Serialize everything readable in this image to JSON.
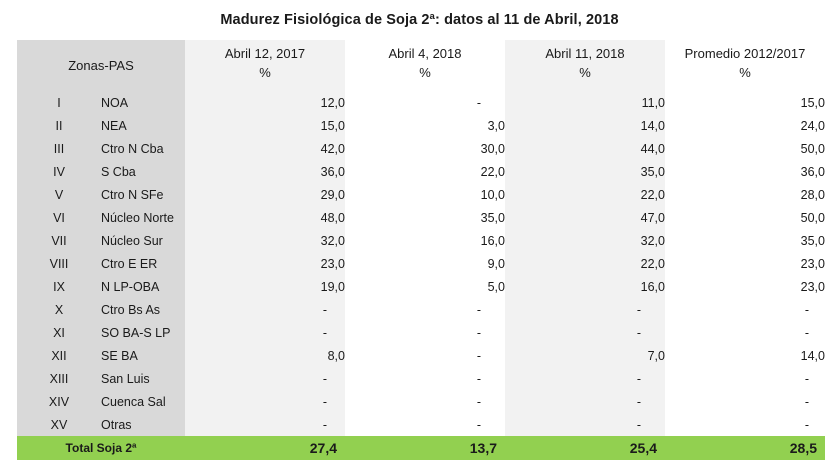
{
  "title": "Madurez Fisiológica de Soja 2ª: datos al 11 de Abril, 2018",
  "header": {
    "zone_label": "Zonas-PAS",
    "columns": [
      {
        "label": "Abril 12, 2017",
        "unit": "%"
      },
      {
        "label": "Abril 4, 2018",
        "unit": "%"
      },
      {
        "label": "Abril 11, 2018",
        "unit": "%"
      },
      {
        "label": "Promedio 2012/2017",
        "unit": "%"
      }
    ]
  },
  "rows": [
    {
      "roman": "I",
      "zone": "NOA",
      "values": [
        "12,0",
        "-",
        "11,0",
        "15,0"
      ]
    },
    {
      "roman": "II",
      "zone": "NEA",
      "values": [
        "15,0",
        "3,0",
        "14,0",
        "24,0"
      ]
    },
    {
      "roman": "III",
      "zone": "Ctro N Cba",
      "values": [
        "42,0",
        "30,0",
        "44,0",
        "50,0"
      ]
    },
    {
      "roman": "IV",
      "zone": "S Cba",
      "values": [
        "36,0",
        "22,0",
        "35,0",
        "36,0"
      ]
    },
    {
      "roman": "V",
      "zone": "Ctro N SFe",
      "values": [
        "29,0",
        "10,0",
        "22,0",
        "28,0"
      ]
    },
    {
      "roman": "VI",
      "zone": "Núcleo Norte",
      "values": [
        "48,0",
        "35,0",
        "47,0",
        "50,0"
      ]
    },
    {
      "roman": "VII",
      "zone": "Núcleo Sur",
      "values": [
        "32,0",
        "16,0",
        "32,0",
        "35,0"
      ]
    },
    {
      "roman": "VIII",
      "zone": "Ctro E ER",
      "values": [
        "23,0",
        "9,0",
        "22,0",
        "23,0"
      ]
    },
    {
      "roman": "IX",
      "zone": "N LP-OBA",
      "values": [
        "19,0",
        "5,0",
        "16,0",
        "23,0"
      ]
    },
    {
      "roman": "X",
      "zone": "Ctro Bs As",
      "values": [
        "-",
        "-",
        "-",
        "-"
      ]
    },
    {
      "roman": "XI",
      "zone": "SO BA-S LP",
      "values": [
        "-",
        "-",
        "-",
        "-"
      ]
    },
    {
      "roman": "XII",
      "zone": "SE BA",
      "values": [
        "8,0",
        "-",
        "7,0",
        "14,0"
      ]
    },
    {
      "roman": "XIII",
      "zone": "San Luis",
      "values": [
        "-",
        "-",
        "-",
        "-"
      ]
    },
    {
      "roman": "XIV",
      "zone": "Cuenca Sal",
      "values": [
        "-",
        "-",
        "-",
        "-"
      ]
    },
    {
      "roman": "XV",
      "zone": "Otras",
      "values": [
        "-",
        "-",
        "-",
        "-"
      ]
    }
  ],
  "total": {
    "label": "Total Soja 2ª",
    "values": [
      "27,4",
      "13,7",
      "25,4",
      "28,5"
    ]
  },
  "colors": {
    "total_row_bg": "#92d050",
    "zone_col_bg": "#d9d9d9",
    "alt_col_bg": "#f2f2f2"
  }
}
